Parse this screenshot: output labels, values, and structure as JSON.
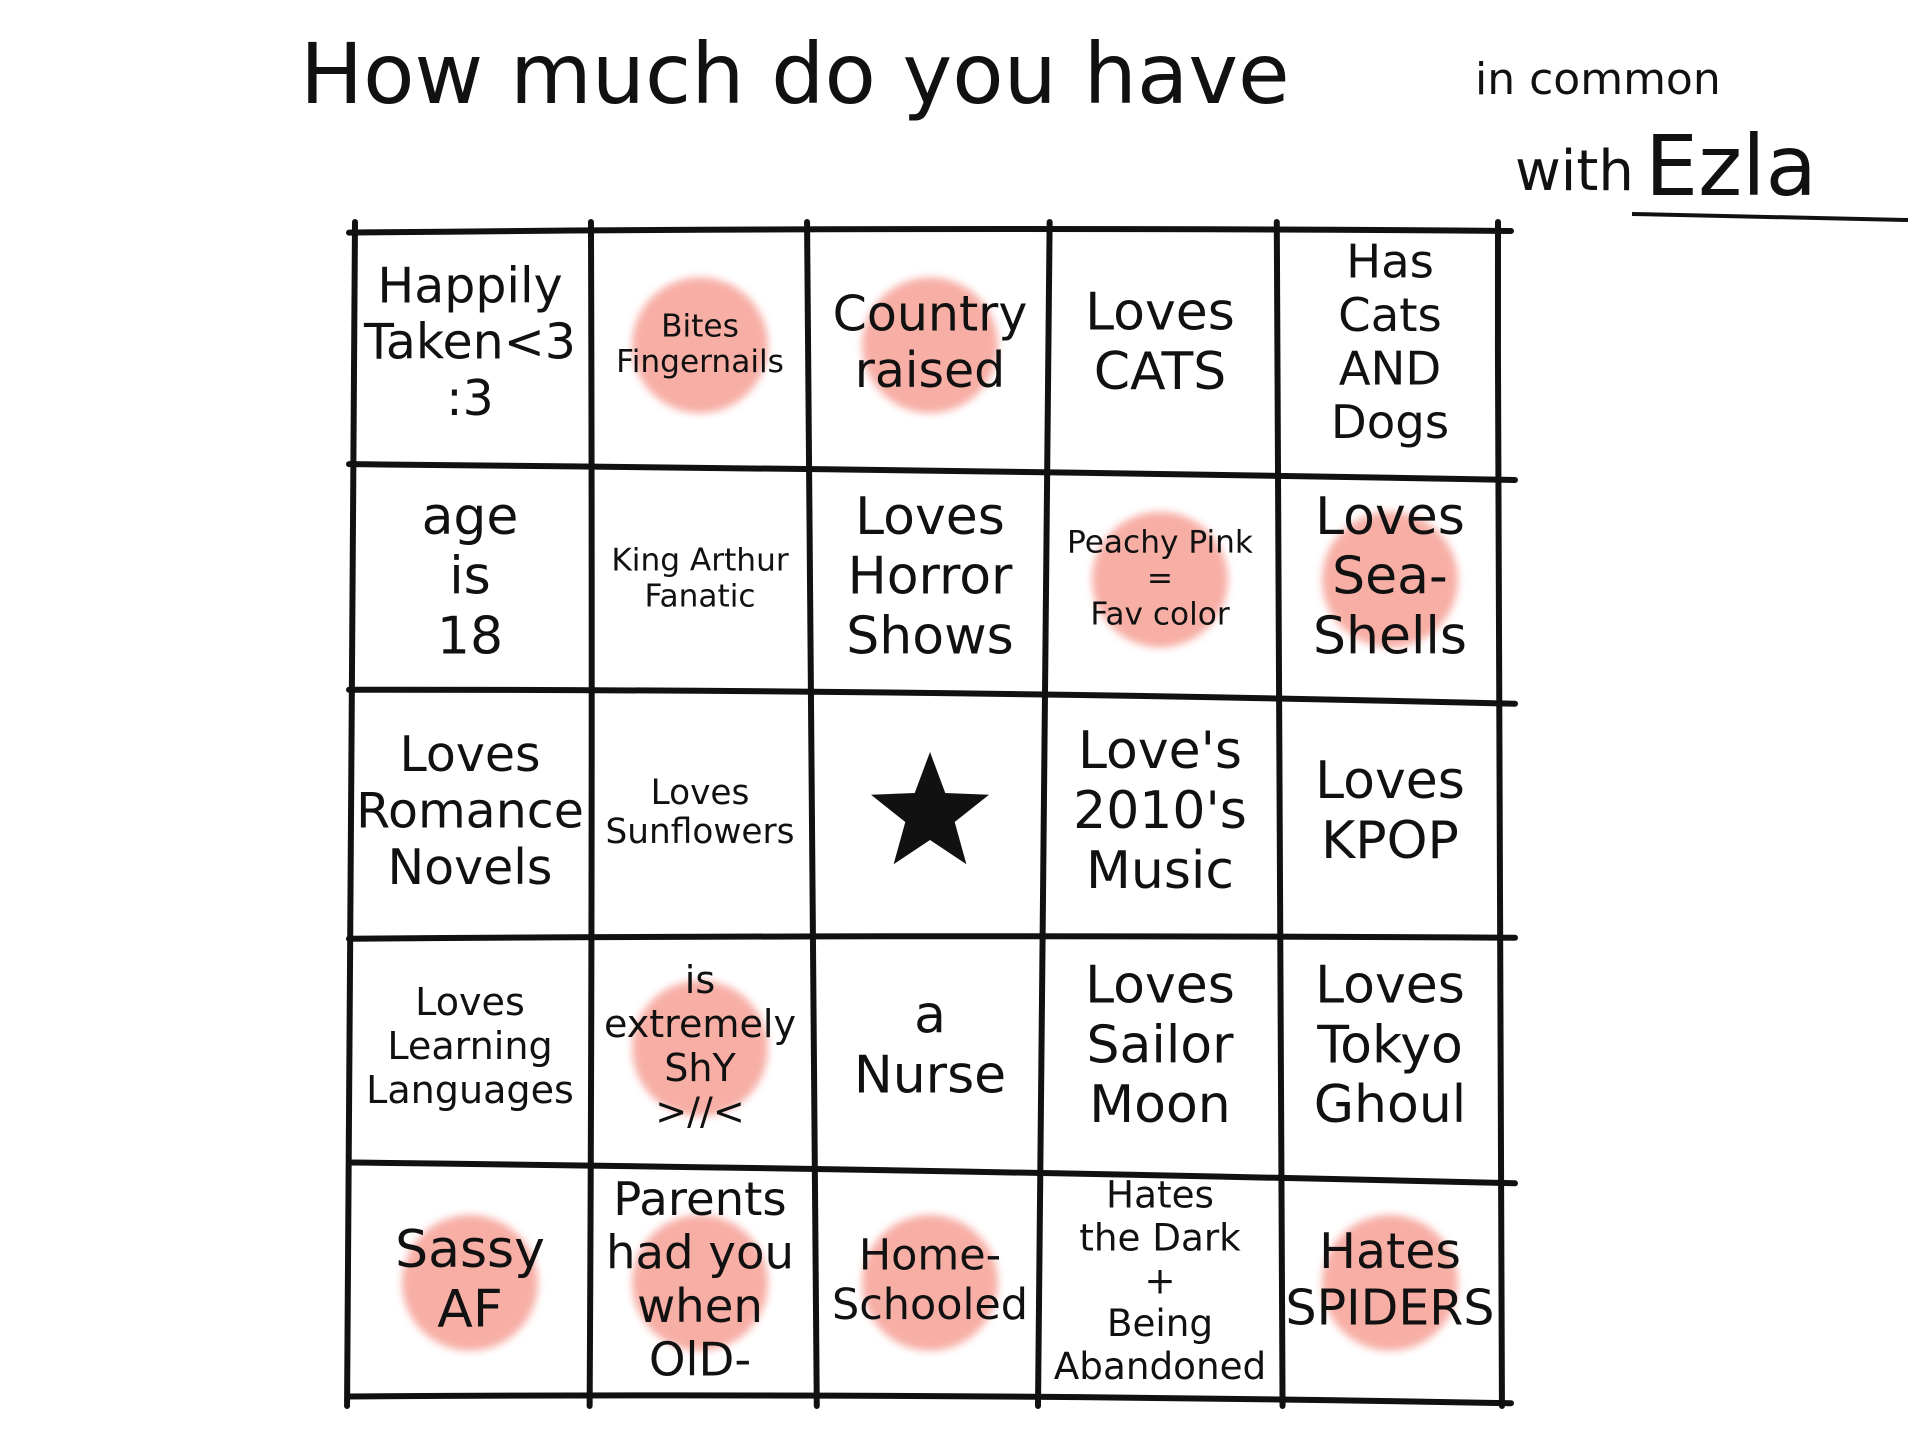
{
  "header": {
    "title_main": "How much do you have",
    "title_end": "in common",
    "with_label": "with",
    "name": "Ezla"
  },
  "grid": {
    "rows": [
      [
        {
          "lines": [
            "Happily",
            "Taken<3",
            ":3"
          ],
          "marked": false
        },
        {
          "lines": [
            "Bites",
            "Fingernails"
          ],
          "marked": true
        },
        {
          "lines": [
            "Country",
            "raised"
          ],
          "marked": true
        },
        {
          "lines": [
            "Loves",
            "CATS"
          ],
          "marked": false
        },
        {
          "lines": [
            "Has",
            "Cats",
            "AND",
            "Dogs"
          ],
          "marked": false
        }
      ],
      [
        {
          "lines": [
            "age",
            "is",
            "18"
          ],
          "marked": false
        },
        {
          "lines": [
            "King Arthur",
            "Fanatic"
          ],
          "marked": false
        },
        {
          "lines": [
            "Loves",
            "Horror",
            "Shows"
          ],
          "marked": false
        },
        {
          "lines": [
            "Peachy Pink",
            "=",
            "Fav color"
          ],
          "marked": true
        },
        {
          "lines": [
            "Loves",
            "Sea-",
            "Shells"
          ],
          "marked": true
        }
      ],
      [
        {
          "lines": [
            "Loves",
            "Romance",
            "Novels"
          ],
          "marked": false
        },
        {
          "lines": [
            "Loves",
            "Sunflowers"
          ],
          "marked": false
        },
        {
          "free": true,
          "marked": false
        },
        {
          "lines": [
            "Love's",
            "2010's",
            "Music"
          ],
          "marked": false
        },
        {
          "lines": [
            "Loves",
            "KPOP"
          ],
          "marked": false
        }
      ],
      [
        {
          "lines": [
            "Loves",
            "Learning",
            "Languages"
          ],
          "marked": false
        },
        {
          "lines": [
            "is",
            "extremely",
            "ShY",
            ">//<"
          ],
          "marked": true
        },
        {
          "lines": [
            "a",
            "Nurse"
          ],
          "marked": false
        },
        {
          "lines": [
            "Loves",
            "Sailor",
            "Moon"
          ],
          "marked": false
        },
        {
          "lines": [
            "Loves",
            "Tokyo",
            "Ghoul"
          ],
          "marked": false
        }
      ],
      [
        {
          "lines": [
            "Sassy",
            "AF"
          ],
          "marked": true
        },
        {
          "lines": [
            "Parents",
            "had you",
            "when",
            "OlD-"
          ],
          "marked": true
        },
        {
          "lines": [
            "Home-",
            "Schooled"
          ],
          "marked": true
        },
        {
          "lines": [
            "Hates",
            "the Dark",
            "+",
            "Being",
            "Abandoned"
          ],
          "marked": false
        },
        {
          "lines": [
            "Hates",
            "SPIDERS"
          ],
          "marked": true
        }
      ]
    ]
  }
}
